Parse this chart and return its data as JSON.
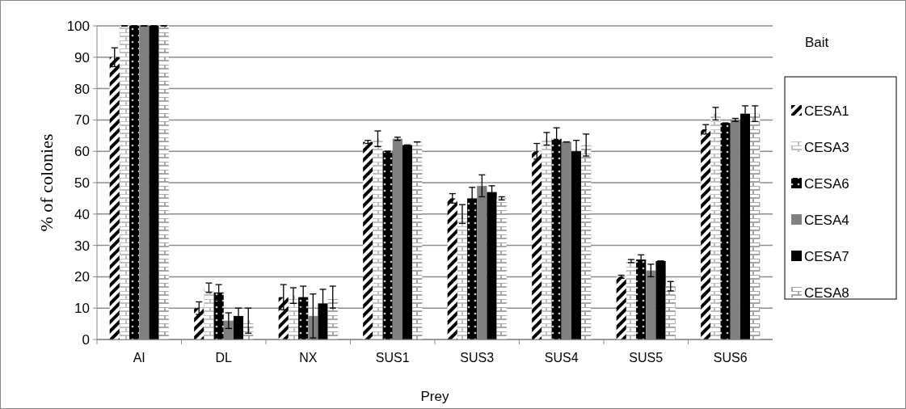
{
  "chart_data": {
    "type": "bar",
    "xlabel": "Prey",
    "ylabel": "% of colonies",
    "legend_title": "Bait",
    "categories": [
      "AI",
      "DL",
      "NX",
      "SUS1",
      "SUS3",
      "SUS4",
      "SUS5",
      "SUS6"
    ],
    "series": [
      {
        "name": "CESA1",
        "color": "#000000",
        "values": [
          90,
          10,
          13.5,
          63,
          45,
          60,
          20,
          67
        ],
        "errors": [
          3,
          2,
          4,
          0.5,
          1.5,
          2.5,
          0.5,
          1.5
        ]
      },
      {
        "name": "CESA3",
        "color": "#c0c0c0",
        "values": [
          100,
          16.5,
          14,
          64,
          40,
          64,
          25,
          72
        ],
        "errors": [
          0,
          1.5,
          2.5,
          2.5,
          3,
          2,
          0.5,
          2
        ]
      },
      {
        "name": "CESA6",
        "color": "#000000",
        "values": [
          100,
          15,
          13.5,
          60,
          45,
          64,
          25.5,
          69
        ],
        "errors": [
          0,
          2.5,
          3.5,
          0,
          3.5,
          3.5,
          1.5,
          0
        ]
      },
      {
        "name": "CESA4",
        "color": "#808080",
        "values": [
          100,
          6,
          7.5,
          64,
          49,
          63,
          22,
          70
        ],
        "errors": [
          0,
          2.5,
          7,
          0.5,
          3.5,
          0,
          2,
          0.5
        ]
      },
      {
        "name": "CESA7",
        "color": "#000000",
        "values": [
          100,
          7.5,
          11.5,
          62,
          47,
          60,
          25,
          72
        ],
        "errors": [
          0,
          2.5,
          4.5,
          0,
          2,
          3.5,
          0,
          2.5
        ]
      },
      {
        "name": "CESA8",
        "color": "#a6a6a6",
        "values": [
          100,
          6,
          13.5,
          63,
          45,
          62,
          17,
          72
        ],
        "errors": [
          0,
          4,
          3.5,
          0,
          0.5,
          3.5,
          1.5,
          2.5
        ]
      }
    ],
    "ylim": [
      0,
      100
    ],
    "yticks": [
      0,
      10,
      20,
      30,
      40,
      50,
      60,
      70,
      80,
      90,
      100
    ],
    "grid": "y",
    "legend": "right"
  }
}
